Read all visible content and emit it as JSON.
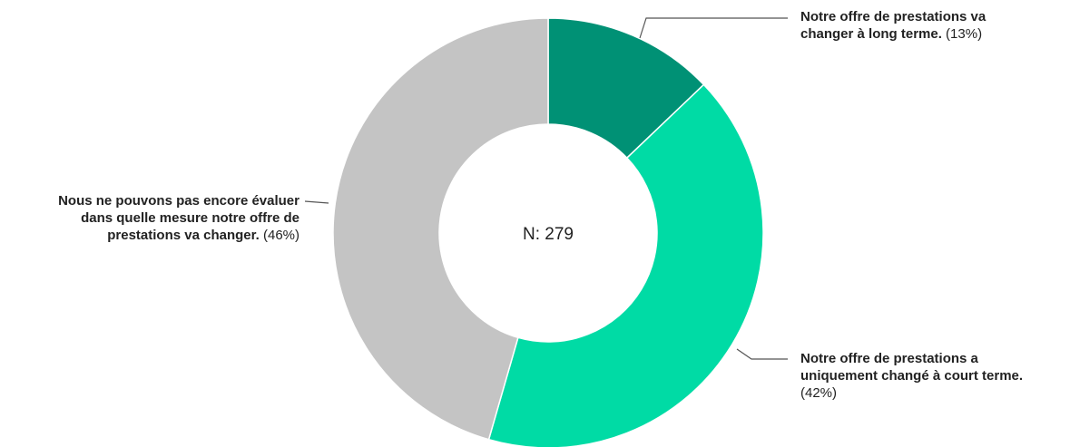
{
  "chart_data": {
    "type": "pie",
    "center_label": "N: 279",
    "categories": [
      "Notre offre de prestations va changer à long terme.",
      "Notre offre de prestations a uniquement changé à court terme.",
      "Nous ne pouvons pas encore évaluer dans quelle mesure notre offre de prestations va changer."
    ],
    "values": [
      13,
      42,
      46
    ],
    "value_labels": [
      "(13%)",
      "(42%)",
      "(46%)"
    ],
    "colors": [
      "#009175",
      "#00dba5",
      "#c4c4c4"
    ],
    "donut": true
  }
}
